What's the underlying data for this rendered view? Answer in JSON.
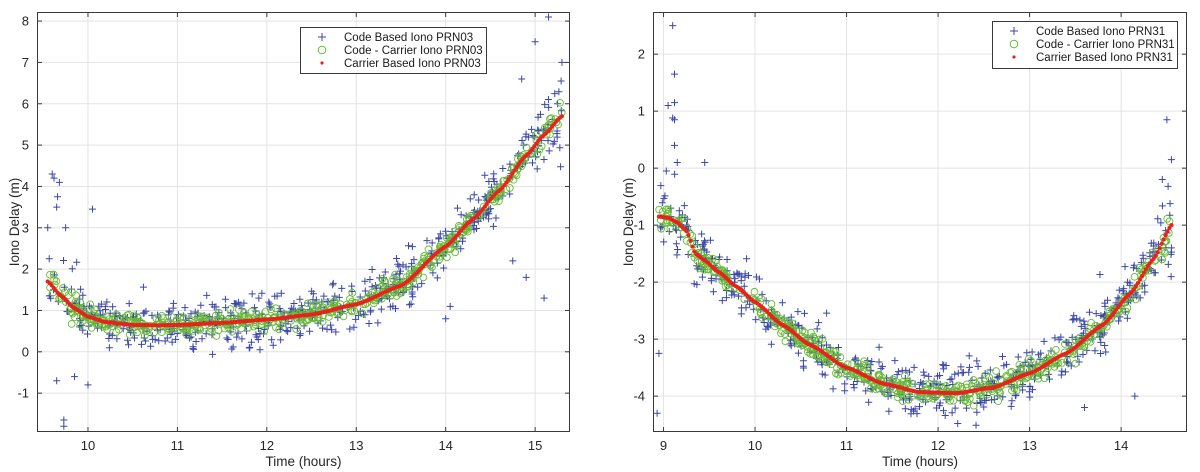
{
  "chart_data": [
    {
      "type": "scatter",
      "title": "",
      "xlabel": "Time (hours)",
      "ylabel": "Iono Delay (m)",
      "xlim": [
        9.43,
        15.39
      ],
      "ylim": [
        -1.94,
        8.22
      ],
      "xticks": [
        "10",
        "11",
        "12",
        "13",
        "14",
        "15"
      ],
      "xtick_values": [
        10,
        11,
        12,
        13,
        14,
        15
      ],
      "yticks": [
        "-1",
        "0",
        "1",
        "2",
        "3",
        "4",
        "5",
        "6",
        "7",
        "8"
      ],
      "ytick_values": [
        -1,
        0,
        1,
        2,
        3,
        4,
        5,
        6,
        7,
        8
      ],
      "grid": true,
      "legend_position": "top-center",
      "colors": {
        "code": "#3b47a8",
        "code_carrier": "#66bb33",
        "carrier": "#e8231b"
      },
      "series": [
        {
          "name": "Code Based Iono PRN03",
          "marker": "plus",
          "noise": 0.55,
          "outliers": [
            [
              9.6,
              4.3
            ],
            [
              9.62,
              4.2
            ],
            [
              9.68,
              4.1
            ],
            [
              9.66,
              3.75
            ],
            [
              9.65,
              3.5
            ],
            [
              9.55,
              3.0
            ],
            [
              9.75,
              3.0
            ],
            [
              10.05,
              3.45
            ],
            [
              9.73,
              -1.65
            ],
            [
              9.73,
              -1.8
            ],
            [
              10.0,
              -0.8
            ],
            [
              9.65,
              -0.7
            ],
            [
              9.85,
              -0.6
            ],
            [
              15.15,
              8.1
            ],
            [
              15.0,
              7.5
            ],
            [
              15.3,
              7.0
            ],
            [
              14.85,
              6.6
            ],
            [
              15.25,
              6.0
            ],
            [
              15.1,
              1.3
            ],
            [
              14.9,
              1.8
            ],
            [
              14.75,
              2.2
            ],
            [
              14.05,
              1.1
            ],
            [
              14.0,
              0.8
            ]
          ]
        },
        {
          "name": "Code - Carrier Iono PRN03",
          "marker": "circle",
          "noise": 0.22
        },
        {
          "name": "Carrier Based Iono PRN03",
          "marker": "dot",
          "x": [
            9.55,
            9.7,
            9.85,
            10.0,
            10.2,
            10.5,
            10.8,
            11.0,
            11.5,
            12.0,
            12.5,
            13.0,
            13.5,
            14.0,
            14.3,
            14.6,
            14.9,
            15.1,
            15.3
          ],
          "y": [
            1.7,
            1.35,
            1.05,
            0.85,
            0.72,
            0.65,
            0.64,
            0.65,
            0.7,
            0.78,
            0.9,
            1.15,
            1.6,
            2.55,
            3.2,
            3.9,
            4.75,
            5.25,
            5.7
          ]
        }
      ]
    },
    {
      "type": "scatter",
      "title": "",
      "xlabel": "Time (hours)",
      "ylabel": "Iono Delay (m)",
      "xlim": [
        8.885,
        14.72
      ],
      "ylim": [
        -4.63,
        2.74
      ],
      "xticks": [
        "9",
        "10",
        "11",
        "12",
        "13",
        "14"
      ],
      "xtick_values": [
        9,
        10,
        11,
        12,
        13,
        14
      ],
      "yticks": [
        "-4",
        "-3",
        "-2",
        "-1",
        "0",
        "1",
        "2"
      ],
      "ytick_values": [
        -4,
        -3,
        -2,
        -1,
        0,
        1,
        2
      ],
      "grid": true,
      "legend_position": "top-right",
      "colors": {
        "code": "#3b47a8",
        "code_carrier": "#66bb33",
        "carrier": "#e8231b"
      },
      "series": [
        {
          "name": "Code Based Iono PRN31",
          "marker": "plus",
          "noise": 0.45,
          "outliers": [
            [
              9.1,
              2.5
            ],
            [
              9.12,
              1.65
            ],
            [
              9.05,
              1.1
            ],
            [
              9.12,
              1.15
            ],
            [
              9.1,
              0.88
            ],
            [
              9.12,
              0.85
            ],
            [
              9.12,
              0.4
            ],
            [
              9.15,
              0.1
            ],
            [
              9.45,
              0.1
            ],
            [
              9.03,
              -0.05
            ],
            [
              8.95,
              -3.25
            ],
            [
              8.93,
              -4.3
            ],
            [
              14.5,
              0.85
            ],
            [
              14.55,
              0.15
            ],
            [
              14.45,
              -0.2
            ],
            [
              14.55,
              -1.4
            ],
            [
              14.15,
              -4.0
            ],
            [
              13.6,
              -4.2
            ]
          ]
        },
        {
          "name": "Code - Carrier Iono PRN31",
          "marker": "circle",
          "noise": 0.18
        },
        {
          "name": "Carrier Based Iono PRN31",
          "marker": "dot",
          "x": [
            8.95,
            9.05,
            9.15,
            9.25,
            9.35,
            9.45,
            9.6,
            9.8,
            10.0,
            10.3,
            10.6,
            11.0,
            11.4,
            11.8,
            12.2,
            12.6,
            13.0,
            13.4,
            13.8,
            14.1,
            14.35,
            14.55
          ],
          "y": [
            -0.85,
            -0.87,
            -0.95,
            -1.1,
            -1.5,
            -1.62,
            -1.82,
            -2.08,
            -2.35,
            -2.75,
            -3.1,
            -3.5,
            -3.78,
            -3.93,
            -3.95,
            -3.85,
            -3.6,
            -3.25,
            -2.75,
            -2.2,
            -1.6,
            -1.0
          ]
        }
      ]
    }
  ]
}
